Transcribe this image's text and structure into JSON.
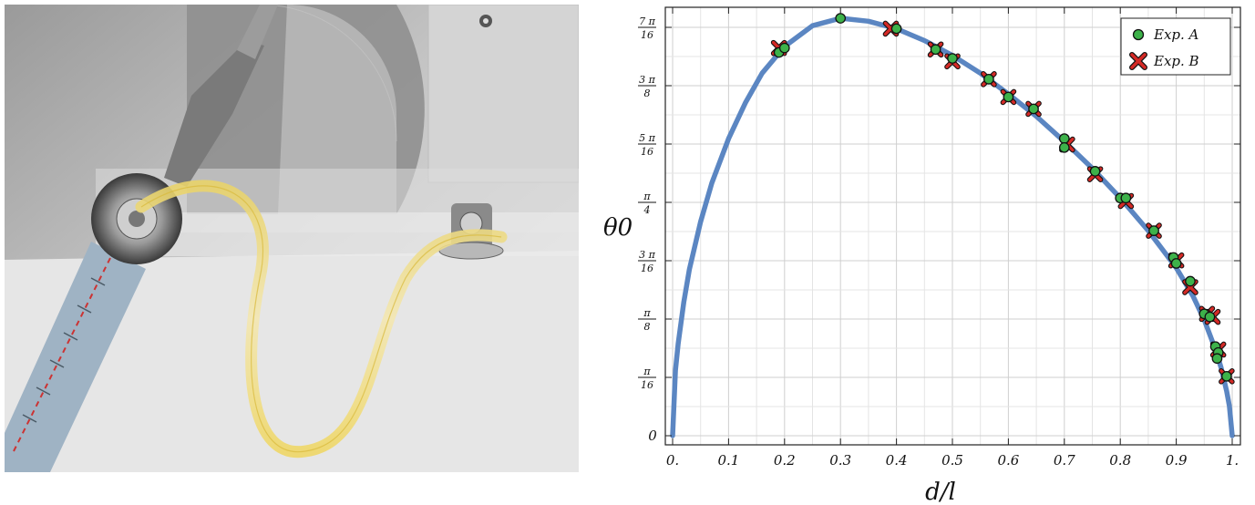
{
  "photo": {
    "description_icon": "experimental-setup-photo"
  },
  "chart_data": {
    "type": "scatter",
    "title": "",
    "xlabel": "d/l",
    "ylabel": "θ0",
    "xlim": [
      0,
      1
    ],
    "ylim": [
      0,
      1.4726
    ],
    "grid": true,
    "legend_position": "top-right",
    "x_ticks": [
      {
        "value": 0.0,
        "label": "0."
      },
      {
        "value": 0.1,
        "label": "0.1"
      },
      {
        "value": 0.2,
        "label": "0.2"
      },
      {
        "value": 0.3,
        "label": "0.3"
      },
      {
        "value": 0.4,
        "label": "0.4"
      },
      {
        "value": 0.5,
        "label": "0.5"
      },
      {
        "value": 0.6,
        "label": "0.6"
      },
      {
        "value": 0.7,
        "label": "0.7"
      },
      {
        "value": 0.8,
        "label": "0.8"
      },
      {
        "value": 0.9,
        "label": "0.9"
      },
      {
        "value": 1.0,
        "label": "1."
      }
    ],
    "y_ticks": [
      {
        "value": 0.0,
        "num": "0",
        "den": ""
      },
      {
        "value": 0.19635,
        "num": "π",
        "den": "16"
      },
      {
        "value": 0.3927,
        "num": "π",
        "den": "8"
      },
      {
        "value": 0.58905,
        "num": "3 π",
        "den": "16"
      },
      {
        "value": 0.7854,
        "num": "π",
        "den": "4"
      },
      {
        "value": 0.98175,
        "num": "5 π",
        "den": "16"
      },
      {
        "value": 1.1781,
        "num": "3 π",
        "den": "8"
      },
      {
        "value": 1.37445,
        "num": "7 π",
        "den": "16"
      }
    ],
    "curve_color": "#5b86c2",
    "curve_points": [
      [
        0.0,
        0.0
      ],
      [
        0.005,
        0.22
      ],
      [
        0.01,
        0.31
      ],
      [
        0.02,
        0.45
      ],
      [
        0.03,
        0.56
      ],
      [
        0.05,
        0.72
      ],
      [
        0.07,
        0.85
      ],
      [
        0.1,
        1.0
      ],
      [
        0.13,
        1.12
      ],
      [
        0.16,
        1.22
      ],
      [
        0.2,
        1.31
      ],
      [
        0.25,
        1.38
      ],
      [
        0.3,
        1.405
      ],
      [
        0.35,
        1.395
      ],
      [
        0.4,
        1.37
      ],
      [
        0.45,
        1.33
      ],
      [
        0.5,
        1.28
      ],
      [
        0.55,
        1.22
      ],
      [
        0.6,
        1.15
      ],
      [
        0.65,
        1.075
      ],
      [
        0.7,
        0.99
      ],
      [
        0.75,
        0.9
      ],
      [
        0.8,
        0.8
      ],
      [
        0.85,
        0.69
      ],
      [
        0.9,
        0.565
      ],
      [
        0.93,
        0.47
      ],
      [
        0.95,
        0.39
      ],
      [
        0.97,
        0.29
      ],
      [
        0.98,
        0.23
      ],
      [
        0.99,
        0.15
      ],
      [
        0.995,
        0.1
      ],
      [
        1.0,
        0.0
      ]
    ],
    "series": [
      {
        "name": "Exp. A",
        "marker": "circle",
        "color": "#3db24a",
        "points": [
          [
            0.19,
            1.29
          ],
          [
            0.2,
            1.305
          ],
          [
            0.3,
            1.405
          ],
          [
            0.4,
            1.37
          ],
          [
            0.47,
            1.3
          ],
          [
            0.5,
            1.27
          ],
          [
            0.565,
            1.2
          ],
          [
            0.6,
            1.14
          ],
          [
            0.645,
            1.1
          ],
          [
            0.7,
            1.0
          ],
          [
            0.7,
            0.97
          ],
          [
            0.755,
            0.89
          ],
          [
            0.8,
            0.8
          ],
          [
            0.81,
            0.8
          ],
          [
            0.86,
            0.69
          ],
          [
            0.895,
            0.6
          ],
          [
            0.9,
            0.58
          ],
          [
            0.925,
            0.52
          ],
          [
            0.95,
            0.41
          ],
          [
            0.96,
            0.4
          ],
          [
            0.97,
            0.3
          ],
          [
            0.975,
            0.28
          ],
          [
            0.973,
            0.26
          ],
          [
            0.99,
            0.2
          ]
        ]
      },
      {
        "name": "Exp. B",
        "marker": "x",
        "color": "#d42a26",
        "points": [
          [
            0.19,
            1.305
          ],
          [
            0.39,
            1.37
          ],
          [
            0.47,
            1.3
          ],
          [
            0.5,
            1.26
          ],
          [
            0.565,
            1.2
          ],
          [
            0.6,
            1.14
          ],
          [
            0.645,
            1.1
          ],
          [
            0.705,
            0.98
          ],
          [
            0.755,
            0.88
          ],
          [
            0.81,
            0.79
          ],
          [
            0.86,
            0.69
          ],
          [
            0.9,
            0.59
          ],
          [
            0.925,
            0.5
          ],
          [
            0.955,
            0.41
          ],
          [
            0.965,
            0.4
          ],
          [
            0.975,
            0.29
          ],
          [
            0.99,
            0.2
          ]
        ]
      }
    ]
  }
}
